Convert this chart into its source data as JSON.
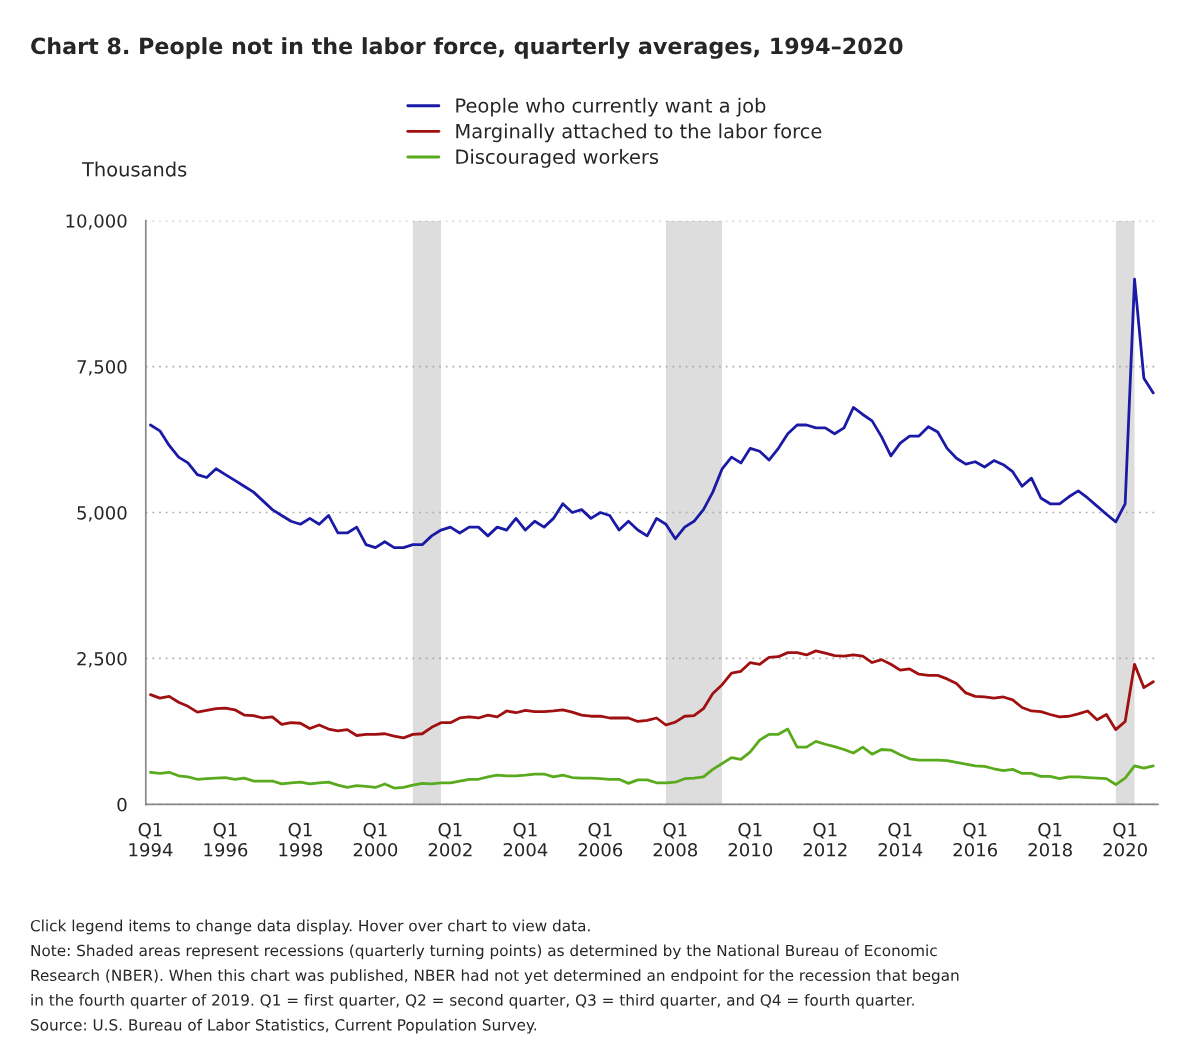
{
  "chart_data": {
    "type": "line",
    "title": "Chart 8. People not in the labor force, quarterly averages, 1994–2020",
    "ylabel": "Thousands",
    "categories": [
      "Q1\n1994",
      null,
      null,
      null,
      null,
      null,
      null,
      null,
      "Q1\n1996",
      null,
      null,
      null,
      null,
      null,
      null,
      null,
      "Q1\n1998",
      null,
      null,
      null,
      null,
      null,
      null,
      null,
      "Q1\n2000",
      null,
      null,
      null,
      null,
      null,
      null,
      null,
      "Q1\n2002",
      null,
      null,
      null,
      null,
      null,
      null,
      null,
      "Q1\n2004",
      null,
      null,
      null,
      null,
      null,
      null,
      null,
      "Q1\n2006",
      null,
      null,
      null,
      null,
      null,
      null,
      null,
      "Q1\n2008",
      null,
      null,
      null,
      null,
      null,
      null,
      null,
      "Q1\n2010",
      null,
      null,
      null,
      null,
      null,
      null,
      null,
      "Q1\n2012",
      null,
      null,
      null,
      null,
      null,
      null,
      null,
      "Q1\n2014",
      null,
      null,
      null,
      null,
      null,
      null,
      null,
      "Q1\n2016",
      null,
      null,
      null,
      null,
      null,
      null,
      null,
      "Q1\n2018",
      null,
      null,
      null,
      null,
      null,
      null,
      null,
      "Q1\n2020",
      null,
      null,
      null
    ],
    "series": [
      {
        "name": "People who currently want a job",
        "color": "#1a1aa6",
        "values": [
          6500,
          6400,
          6150,
          5950,
          5850,
          5650,
          5600,
          5750,
          5650,
          5550,
          5450,
          5350,
          5200,
          5050,
          4950,
          4850,
          4800,
          4900,
          4800,
          4950,
          4650,
          4650,
          4750,
          4450,
          4400,
          4500,
          4400,
          4400,
          4450,
          4450,
          4600,
          4700,
          4750,
          4650,
          4750,
          4750,
          4600,
          4750,
          4700,
          4900,
          4700,
          4850,
          4750,
          4900,
          5150,
          5000,
          5050,
          4900,
          5000,
          4950,
          4700,
          4850,
          4700,
          4600,
          4900,
          4800,
          4550,
          4750,
          4850,
          5050,
          5350,
          5750,
          5950,
          5850,
          6100,
          6050,
          5900,
          6100,
          6350,
          6500,
          6500,
          6450,
          6450,
          6350,
          6450,
          6800,
          6680,
          6570,
          6300,
          5970,
          6190,
          6310,
          6310,
          6470,
          6380,
          6100,
          5930,
          5830,
          5870,
          5780,
          5890,
          5820,
          5700,
          5450,
          5590,
          5250,
          5150,
          5150,
          5270,
          5370,
          5250,
          5110,
          4970,
          4840,
          5150,
          9000,
          7300,
          7050
        ]
      },
      {
        "name": "Marginally attached to the labor force",
        "color": "#a01010",
        "values": [
          1880,
          1820,
          1850,
          1750,
          1680,
          1580,
          1610,
          1640,
          1650,
          1620,
          1530,
          1520,
          1480,
          1500,
          1370,
          1400,
          1390,
          1300,
          1360,
          1290,
          1260,
          1280,
          1180,
          1200,
          1200,
          1210,
          1170,
          1140,
          1200,
          1210,
          1320,
          1400,
          1400,
          1480,
          1500,
          1480,
          1530,
          1500,
          1600,
          1570,
          1610,
          1590,
          1590,
          1600,
          1620,
          1580,
          1530,
          1510,
          1510,
          1480,
          1480,
          1480,
          1420,
          1440,
          1480,
          1360,
          1410,
          1510,
          1520,
          1640,
          1900,
          2050,
          2250,
          2280,
          2430,
          2400,
          2520,
          2530,
          2600,
          2600,
          2560,
          2630,
          2590,
          2550,
          2540,
          2560,
          2540,
          2430,
          2480,
          2400,
          2300,
          2320,
          2230,
          2210,
          2210,
          2150,
          2070,
          1910,
          1850,
          1840,
          1820,
          1840,
          1790,
          1660,
          1600,
          1590,
          1540,
          1500,
          1510,
          1550,
          1600,
          1450,
          1540,
          1280,
          1420,
          2400,
          2000,
          2100
        ]
      },
      {
        "name": "Discouraged workers",
        "color": "#5aaa1e",
        "values": [
          550,
          530,
          550,
          490,
          470,
          430,
          440,
          450,
          460,
          430,
          450,
          400,
          400,
          400,
          350,
          370,
          380,
          350,
          370,
          380,
          330,
          290,
          320,
          310,
          290,
          350,
          280,
          290,
          330,
          360,
          350,
          370,
          370,
          400,
          430,
          430,
          470,
          500,
          490,
          490,
          500,
          520,
          520,
          470,
          500,
          460,
          450,
          450,
          440,
          430,
          430,
          360,
          420,
          420,
          370,
          370,
          380,
          440,
          450,
          470,
          600,
          700,
          800,
          770,
          900,
          1100,
          1200,
          1200,
          1290,
          980,
          980,
          1080,
          1030,
          990,
          940,
          880,
          980,
          860,
          940,
          930,
          850,
          780,
          760,
          760,
          760,
          750,
          720,
          690,
          660,
          650,
          610,
          580,
          600,
          530,
          530,
          480,
          480,
          440,
          470,
          470,
          460,
          450,
          440,
          340,
          450,
          660,
          620,
          660
        ]
      }
    ],
    "ylim": [
      0,
      10000
    ],
    "yticks": [
      0,
      {
        "value": 2500,
        "label": "2,500"
      },
      {
        "value": 5000,
        "label": "5,000"
      },
      {
        "value": 7500,
        "label": "7,500"
      },
      {
        "value": 10000,
        "label": "10,000"
      }
    ],
    "grid": "y",
    "legend": "top",
    "line_style": "solid",
    "annotations": [
      "Click legend items to change data display. Hover over chart to view data.",
      "Note: Shaded areas represent recessions (quarterly turning points) as determined by the National Bureau of Economic",
      "Research (NBER). When this chart was published, NBER had not yet determined an endpoint for the recession that began",
      "in the fourth quarter of 2019. Q1 = first quarter, Q2 = second quarter, Q3 = third quarter, and Q4 = fourth quarter.",
      "Source: U.S. Bureau of Labor Statistics, Current Population Survey."
    ]
  }
}
